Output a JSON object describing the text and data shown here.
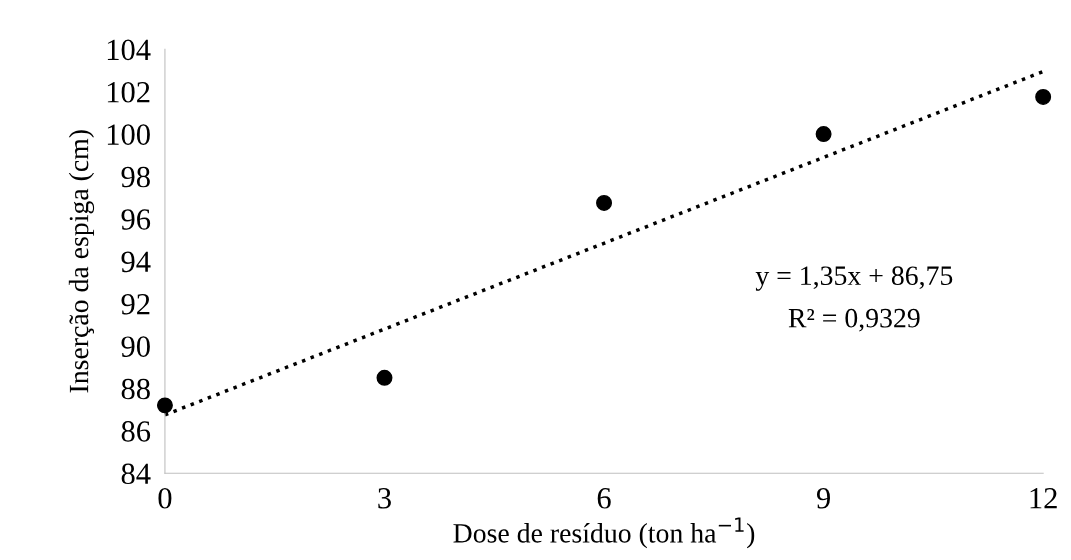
{
  "chart_data": {
    "type": "scatter",
    "xlabel": "Dose de resíduo (ton ha$^{−1}$)",
    "ylabel": "Inserção da espiga (cm)",
    "series": [
      {
        "color": "#000000",
        "marker": "circle",
        "x": [
          0,
          3,
          6,
          9,
          12
        ],
        "values": [
          87.2,
          88.5,
          96.75,
          100,
          101.75
        ]
      },
      {
        "type": "line",
        "color": "#000000",
        "line_style": "dotted",
        "marker": "none",
        "x": [
          0,
          12
        ],
        "values": [
          86.75,
          102.95
        ]
      }
    ],
    "xlim": [
      0,
      12
    ],
    "xticks": [
      0,
      3,
      6,
      9,
      12
    ],
    "ylim": [
      84,
      104
    ],
    "yticks": [
      84,
      86,
      88,
      90,
      92,
      94,
      96,
      98,
      100,
      102,
      104
    ],
    "grid": false,
    "legend": false,
    "annotations": [
      "y = 1,35x + 86,75",
      "R² = 0,9329"
    ]
  }
}
